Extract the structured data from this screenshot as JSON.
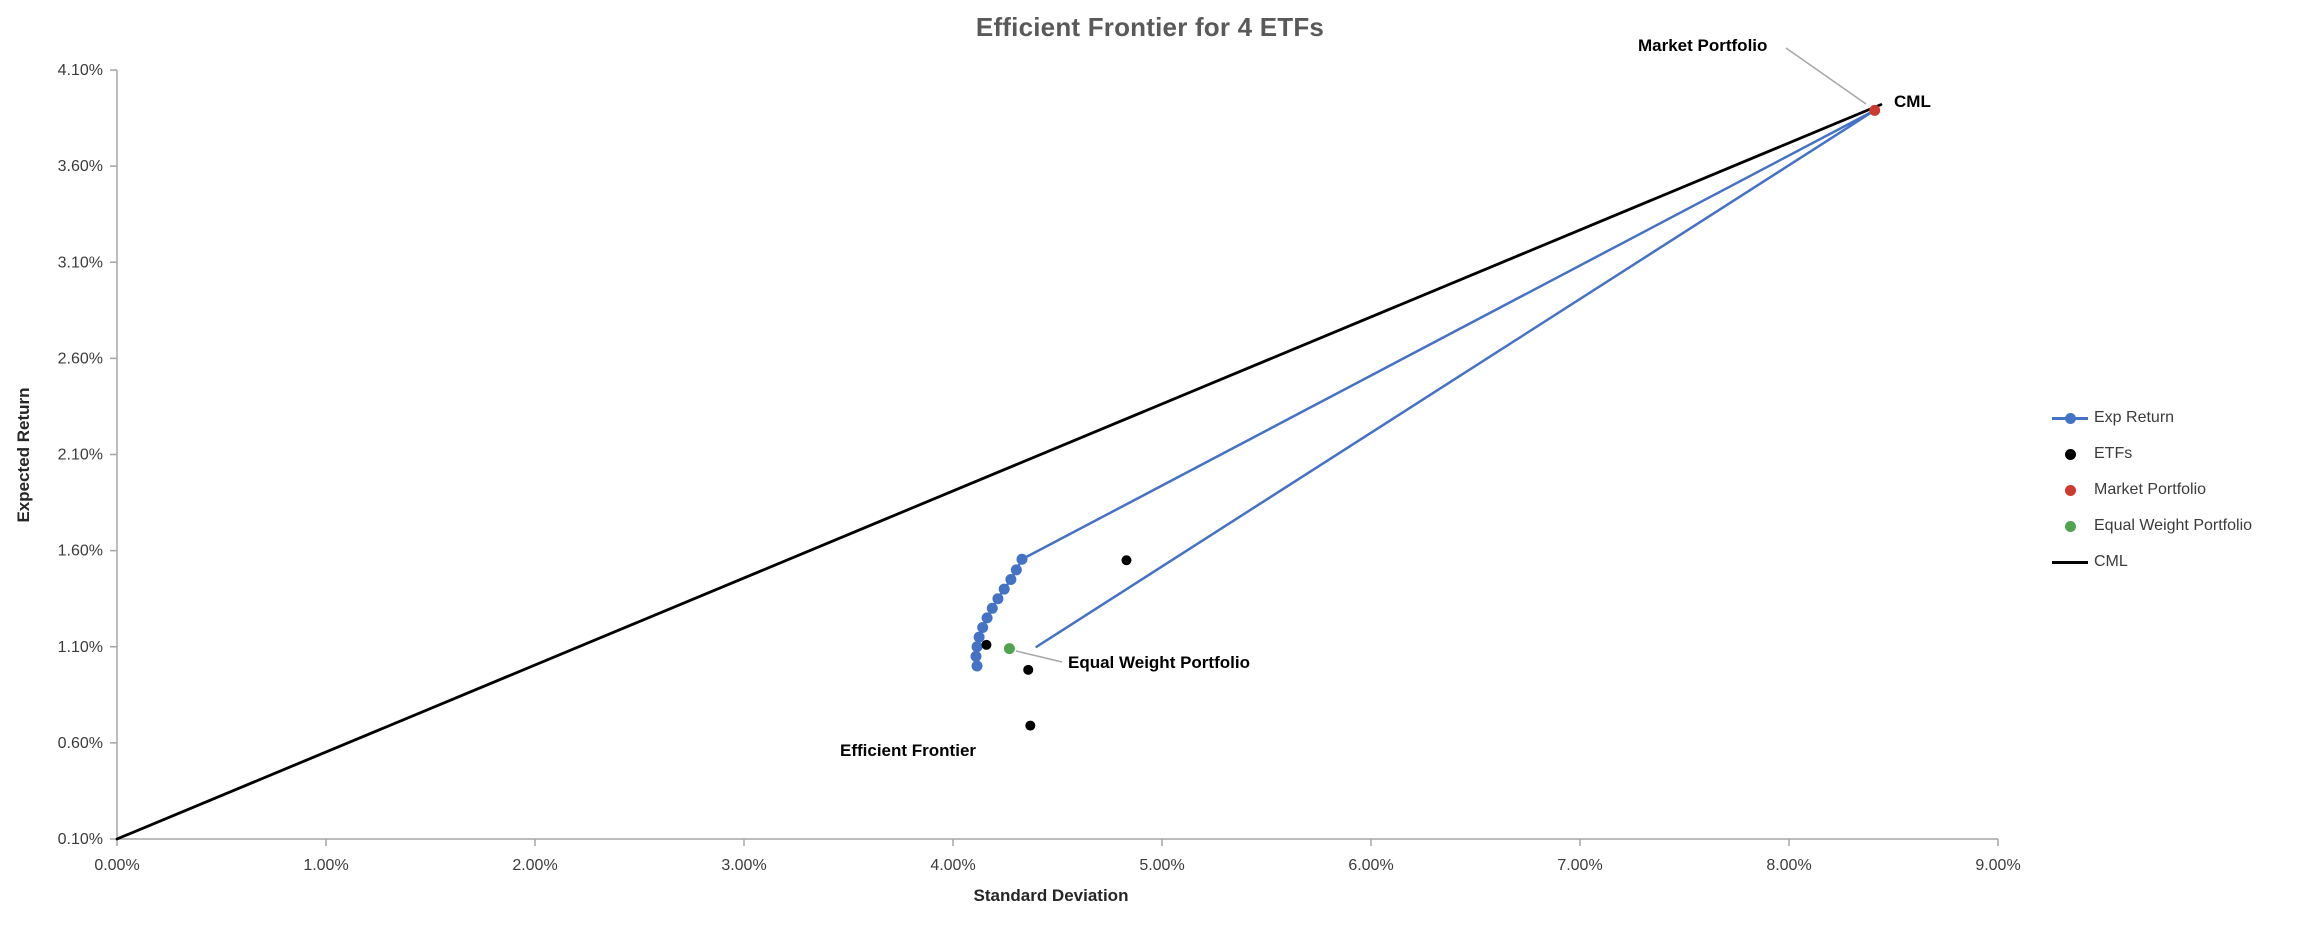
{
  "chart_data": {
    "type": "scatter",
    "title": "Efficient Frontier for 4 ETFs",
    "xlabel": "Standard Deviation",
    "ylabel": "Expected Return",
    "grid": false,
    "legend_position": "right",
    "x_axis": {
      "min": 0,
      "max": 9,
      "unit": "%",
      "tick_labels": [
        "0.00%",
        "1.00%",
        "2.00%",
        "3.00%",
        "4.00%",
        "5.00%",
        "6.00%",
        "7.00%",
        "8.00%",
        "9.00%"
      ]
    },
    "y_axis": {
      "min": 0.1,
      "max": 4.1,
      "unit": "%",
      "tick_labels": [
        "0.10%",
        "0.60%",
        "1.10%",
        "1.60%",
        "2.10%",
        "2.60%",
        "3.10%",
        "3.60%",
        "4.10%"
      ]
    },
    "series": [
      {
        "name": "Exp Return",
        "color": "#4472C4",
        "line_width": 2.5,
        "marker_radius": 5.5,
        "line": [
          [
            4.115,
            1.0
          ],
          [
            4.11,
            1.05
          ],
          [
            4.115,
            1.1
          ],
          [
            4.125,
            1.15
          ],
          [
            4.142,
            1.2
          ],
          [
            4.163,
            1.25
          ],
          [
            4.188,
            1.3
          ],
          [
            4.215,
            1.35
          ],
          [
            4.245,
            1.4
          ],
          [
            4.277,
            1.45
          ],
          [
            4.303,
            1.5
          ],
          [
            4.33,
            1.555
          ],
          [
            8.41,
            3.89
          ],
          [
            4.4,
            1.1
          ]
        ],
        "markers": [
          [
            4.115,
            1.0
          ],
          [
            4.11,
            1.05
          ],
          [
            4.115,
            1.1
          ],
          [
            4.125,
            1.15
          ],
          [
            4.142,
            1.2
          ],
          [
            4.163,
            1.25
          ],
          [
            4.188,
            1.3
          ],
          [
            4.215,
            1.35
          ],
          [
            4.245,
            1.4
          ],
          [
            4.277,
            1.45
          ],
          [
            4.303,
            1.5
          ],
          [
            4.33,
            1.555
          ]
        ]
      },
      {
        "name": "ETFs",
        "color": "#000000",
        "line_width": 0,
        "marker_radius": 5,
        "line": [],
        "markers": [
          [
            4.83,
            1.55
          ],
          [
            4.16,
            1.11
          ],
          [
            4.36,
            0.98
          ],
          [
            4.37,
            0.69
          ]
        ]
      },
      {
        "name": "Market Portfolio",
        "color": "#CC3A30",
        "line_width": 0,
        "marker_radius": 5.5,
        "line": [],
        "markers": [
          [
            8.41,
            3.89
          ]
        ]
      },
      {
        "name": "Equal Weight Portfolio",
        "color": "#4FA44F",
        "line_width": 0,
        "marker_radius": 5.5,
        "line": [],
        "markers": [
          [
            4.27,
            1.09
          ]
        ]
      },
      {
        "name": "CML",
        "color": "#000000",
        "line_width": 2.8,
        "marker_radius": 0,
        "line": [
          [
            0,
            0.1
          ],
          [
            8.44,
            3.92
          ]
        ],
        "markers": []
      }
    ],
    "annotations": [
      {
        "id": "market_portfolio",
        "text": "Market Portfolio"
      },
      {
        "id": "cml",
        "text": "CML"
      },
      {
        "id": "equal_weight",
        "text": "Equal Weight Portfolio"
      },
      {
        "id": "efficient_frontier",
        "text": "Efficient Frontier"
      }
    ]
  },
  "legend": {
    "items": [
      {
        "label": "Exp Return"
      },
      {
        "label": "ETFs"
      },
      {
        "label": "Market Portfolio"
      },
      {
        "label": "Equal Weight Portfolio"
      },
      {
        "label": "CML"
      }
    ]
  },
  "colors": {
    "accent_blue": "#4472C4",
    "marker_red": "#CC3A30",
    "marker_green": "#4FA44F",
    "title_gray": "#595959",
    "axis_gray": "#A6A6A6",
    "tick_text": "#3B3B3B",
    "leader_gray": "#A6A6A6"
  }
}
